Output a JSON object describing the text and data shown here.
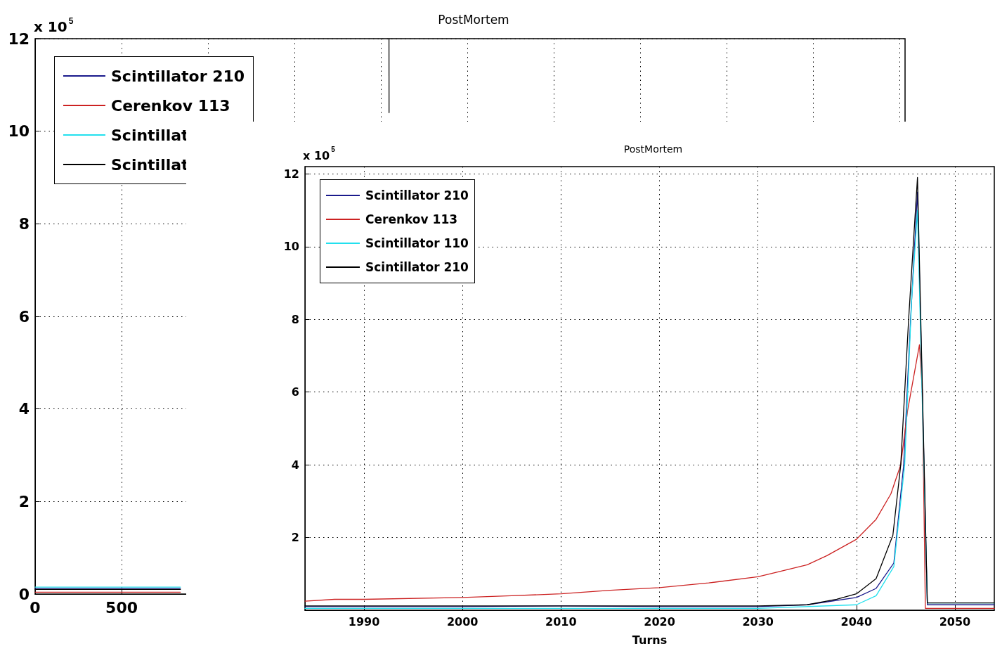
{
  "chart_data": [
    {
      "type": "line",
      "title": "PostMortem",
      "annotations": [
        "x 10$^{5}$"
      ],
      "xlim": [
        0,
        5030
      ],
      "xticks": [
        0,
        500,
        {
          "value": 1000,
          "label": null
        },
        {
          "value": 1500,
          "label": null
        },
        {
          "value": 2000,
          "label": null
        },
        {
          "value": 2500,
          "label": null
        },
        {
          "value": 3000,
          "label": null
        },
        {
          "value": 3500,
          "label": null
        },
        {
          "value": 4000,
          "label": null
        },
        {
          "value": 4500,
          "label": null
        },
        {
          "value": 5000,
          "label": null
        }
      ],
      "ylim": [
        0,
        12
      ],
      "yticks": [
        0,
        2,
        4,
        6,
        8,
        10,
        12
      ],
      "grid": true,
      "legend": "top left",
      "marker": "none",
      "line_style": "solid",
      "series": [
        {
          "name": "Scintillator 210",
          "color": "#1a1a8c",
          "x": [
            0,
            400,
            840
          ],
          "values": [
            0.12,
            0.12,
            0.12
          ]
        },
        {
          "name": "Cerenkov 113",
          "color": "#cc2222",
          "x": [
            0,
            400,
            840
          ],
          "values": [
            0.04,
            0.04,
            0.04
          ]
        },
        {
          "name": "Scintillat",
          "color": "#22e0ee",
          "x": [
            0,
            400,
            840
          ],
          "values": [
            0.15,
            0.15,
            0.15
          ]
        },
        {
          "name": "Scintillat",
          "color": "#000000",
          "x": [
            0,
            400,
            840,
            2045.6,
            2046,
            2046.4
          ],
          "values": [
            0.1,
            0.1,
            0.1,
            null,
            12,
            10.4
          ]
        }
      ]
    },
    {
      "type": "line",
      "title": "PostMortem",
      "xlabel": "Turns",
      "annotations": [
        "x 10$^{5}$"
      ],
      "xlim": [
        1984,
        2054
      ],
      "xticks": [
        1990,
        2000,
        2010,
        2020,
        2030,
        2040,
        2050
      ],
      "ylim": [
        0,
        12.2
      ],
      "yticks": [
        {
          "value": 0,
          "label": null
        },
        2,
        4,
        6,
        8,
        10,
        12
      ],
      "grid": true,
      "legend": "top left",
      "marker": "none",
      "line_style": "solid",
      "series": [
        {
          "name": "Scintillator 210",
          "color": "#1a1a8c",
          "x": [
            1984,
            1990,
            2000,
            2010,
            2020,
            2030,
            2035,
            2040,
            2042,
            2043.8,
            2044.8,
            2045.5,
            2046.2,
            2047.2,
            2054
          ],
          "values": [
            0.1,
            0.1,
            0.1,
            0.12,
            0.1,
            0.1,
            0.15,
            0.35,
            0.6,
            1.3,
            4.0,
            8.0,
            11.5,
            0.15,
            0.15
          ]
        },
        {
          "name": "Cerenkov 113",
          "color": "#cc2222",
          "x": [
            1984,
            1987,
            1990,
            2000,
            2005,
            2010,
            2015,
            2020,
            2025,
            2030,
            2032,
            2035,
            2037,
            2040,
            2042,
            2043.5,
            2044.5,
            2045.2,
            2046.4,
            2046.7,
            2047.0,
            2054
          ],
          "values": [
            0.25,
            0.3,
            0.3,
            0.35,
            0.4,
            0.45,
            0.55,
            0.62,
            0.75,
            0.92,
            1.05,
            1.25,
            1.5,
            1.95,
            2.5,
            3.2,
            4.0,
            5.5,
            7.3,
            6.0,
            0.05,
            0.05
          ]
        },
        {
          "name": "Scintillator 110",
          "color": "#22e0ee",
          "x": [
            1984,
            1990,
            2000,
            2010,
            2020,
            2030,
            2040,
            2042,
            2043.8,
            2044.9,
            2045.6,
            2046.2,
            2047.2,
            2054
          ],
          "values": [
            0.05,
            0.05,
            0.05,
            0.05,
            0.05,
            0.05,
            0.15,
            0.4,
            1.2,
            4.0,
            8.5,
            11.0,
            0.2,
            0.2
          ]
        },
        {
          "name": "Scintillator 210",
          "color": "#000000",
          "x": [
            1984,
            1990,
            2000,
            2010,
            2020,
            2030,
            2035,
            2038,
            2040,
            2042,
            2043.7,
            2044.5,
            2045.3,
            2046.2,
            2047.2,
            2054
          ],
          "values": [
            0.12,
            0.12,
            0.12,
            0.12,
            0.12,
            0.12,
            0.15,
            0.3,
            0.45,
            0.87,
            2.06,
            4.0,
            8.0,
            11.9,
            0.2,
            0.2
          ]
        }
      ]
    }
  ]
}
